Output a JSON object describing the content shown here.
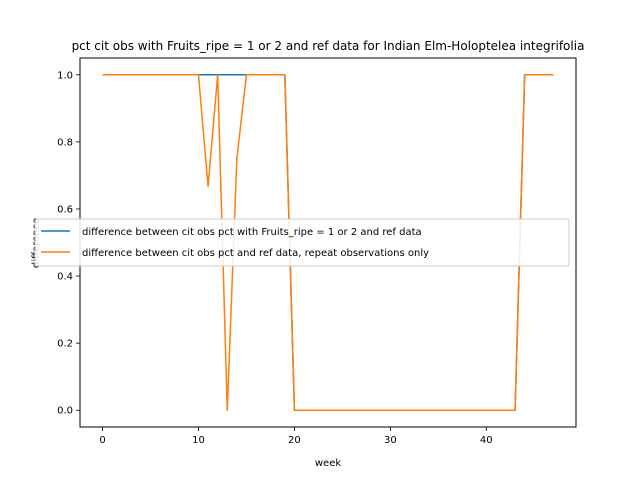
{
  "chart_data": {
    "type": "line",
    "title": "pct cit obs with Fruits_ripe = 1 or 2 and ref data for Indian Elm-Holoptelea integrifolia",
    "xlabel": "week",
    "ylabel": "difference",
    "xlim": [
      -2.35,
      49.35
    ],
    "ylim": [
      -0.05,
      1.05
    ],
    "xticks": [
      0,
      10,
      20,
      30,
      40
    ],
    "yticks": [
      0.0,
      0.2,
      0.4,
      0.6,
      0.8,
      1.0
    ],
    "xtick_labels": [
      "0",
      "10",
      "20",
      "30",
      "40"
    ],
    "ytick_labels": [
      "0.0",
      "0.2",
      "0.4",
      "0.6",
      "0.8",
      "1.0"
    ],
    "legend_position": "center-left",
    "series": [
      {
        "name": "difference between cit obs pct with Fruits_ripe = 1 or 2 and ref data",
        "color": "#1f77b4",
        "x": [
          0,
          1,
          2,
          3,
          4,
          5,
          6,
          7,
          8,
          9,
          10,
          11,
          12,
          13,
          14,
          15,
          16,
          17,
          18,
          19,
          20,
          21,
          22,
          23,
          24,
          25,
          26,
          27,
          28,
          29,
          30,
          31,
          32,
          33,
          34,
          35,
          36,
          37,
          38,
          39,
          40,
          41,
          42,
          43,
          44,
          45,
          46,
          47
        ],
        "y": [
          1,
          1,
          1,
          1,
          1,
          1,
          1,
          1,
          1,
          1,
          1,
          1,
          1,
          1,
          1,
          1,
          1,
          1,
          1,
          1,
          0,
          0,
          0,
          0,
          0,
          0,
          0,
          0,
          0,
          0,
          0,
          0,
          0,
          0,
          0,
          0,
          0,
          0,
          0,
          0,
          0,
          0,
          0,
          0,
          1,
          1,
          1,
          1
        ]
      },
      {
        "name": "difference between cit obs pct and ref data, repeat observations only",
        "color": "#ff7f0e",
        "x": [
          0,
          1,
          2,
          3,
          4,
          5,
          6,
          7,
          8,
          9,
          10,
          11,
          12,
          13,
          14,
          15,
          16,
          17,
          18,
          19,
          20,
          21,
          22,
          23,
          24,
          25,
          26,
          27,
          28,
          29,
          30,
          31,
          32,
          33,
          34,
          35,
          36,
          37,
          38,
          39,
          40,
          41,
          42,
          43,
          44,
          45,
          46,
          47
        ],
        "y": [
          1,
          1,
          1,
          1,
          1,
          1,
          1,
          1,
          1,
          1,
          1,
          0.667,
          1,
          0,
          0.75,
          1,
          1,
          1,
          1,
          1,
          0,
          0,
          0,
          0,
          0,
          0,
          0,
          0,
          0,
          0,
          0,
          0,
          0,
          0,
          0,
          0,
          0,
          0,
          0,
          0,
          0,
          0,
          0,
          0,
          1,
          1,
          1,
          1
        ]
      }
    ]
  }
}
